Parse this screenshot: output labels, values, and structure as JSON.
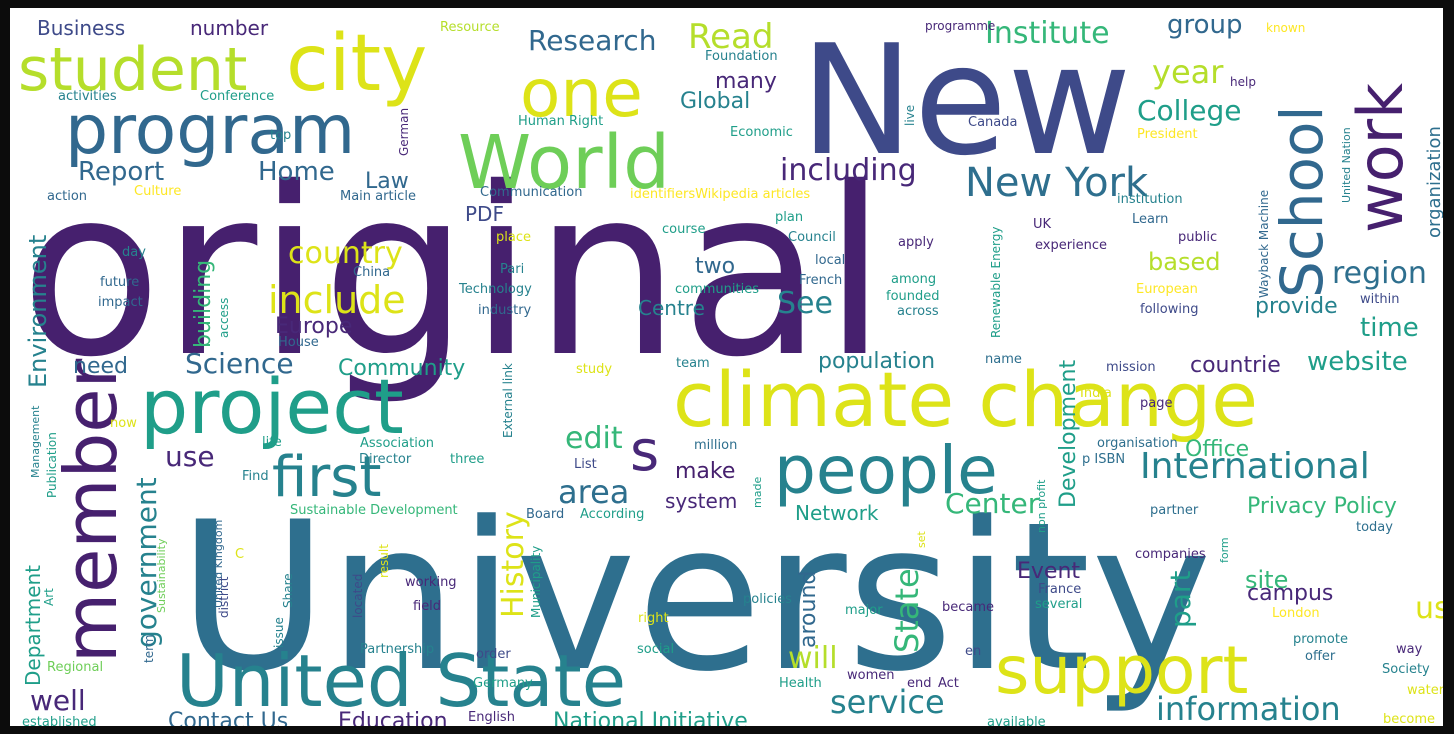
{
  "palette": {
    "dark_purple": "#46206e",
    "purple": "#482878",
    "indigo": "#3e4a89",
    "blue": "#31688e",
    "teal_blue": "#2e6f8e",
    "teal": "#26828e",
    "teal_green": "#1f9e89",
    "green": "#35b779",
    "light_green": "#6ece58",
    "lime": "#b5de2b",
    "yellow": "#dde318",
    "bright_yellow": "#fde725"
  },
  "words": [
    {
      "text": "original",
      "color": "dark_purple"
    },
    {
      "text": "University",
      "color": "teal_blue"
    },
    {
      "text": "New",
      "color": "indigo"
    },
    {
      "text": "climate change",
      "color": "yellow"
    },
    {
      "text": "project",
      "color": "teal_green"
    },
    {
      "text": "World",
      "color": "light_green"
    },
    {
      "text": "city",
      "color": "yellow"
    },
    {
      "text": "United State",
      "color": "teal"
    },
    {
      "text": "member",
      "color": "dark_purple"
    },
    {
      "text": "program",
      "color": "blue"
    },
    {
      "text": "people",
      "color": "teal"
    },
    {
      "text": "support",
      "color": "yellow"
    },
    {
      "text": "one",
      "color": "yellow"
    },
    {
      "text": "School",
      "color": "blue"
    },
    {
      "text": "work",
      "color": "dark_purple"
    },
    {
      "text": "student",
      "color": "lime"
    },
    {
      "text": "first",
      "color": "teal"
    },
    {
      "text": "s",
      "color": "purple"
    },
    {
      "text": "New York",
      "color": "teal_blue"
    },
    {
      "text": "International",
      "color": "teal"
    },
    {
      "text": "including",
      "color": "purple"
    },
    {
      "text": "government",
      "color": "teal"
    },
    {
      "text": "include",
      "color": "yellow"
    },
    {
      "text": "History",
      "color": "yellow"
    },
    {
      "text": "Research",
      "color": "blue"
    },
    {
      "text": "Institute",
      "color": "green"
    },
    {
      "text": "information",
      "color": "teal"
    },
    {
      "text": "service",
      "color": "teal"
    },
    {
      "text": "State",
      "color": "green"
    },
    {
      "text": "country",
      "color": "yellow"
    },
    {
      "text": "region",
      "color": "teal_blue"
    },
    {
      "text": "area",
      "color": "teal_blue"
    },
    {
      "text": "Environment",
      "color": "teal"
    },
    {
      "text": "College",
      "color": "teal_green"
    },
    {
      "text": "Science",
      "color": "blue"
    },
    {
      "text": "edit",
      "color": "green"
    },
    {
      "text": "Read",
      "color": "lime"
    },
    {
      "text": "year",
      "color": "lime"
    },
    {
      "text": "Center",
      "color": "green"
    },
    {
      "text": "Report",
      "color": "blue"
    },
    {
      "text": "Home",
      "color": "blue"
    },
    {
      "text": "use",
      "color": "purple"
    },
    {
      "text": "well",
      "color": "purple"
    },
    {
      "text": "will",
      "color": "lime"
    },
    {
      "text": "website",
      "color": "teal_green"
    },
    {
      "text": "Development",
      "color": "teal_green"
    },
    {
      "text": "part",
      "color": "teal_green"
    },
    {
      "text": "building",
      "color": "green"
    },
    {
      "text": "Privacy Policy",
      "color": "green"
    },
    {
      "text": "See",
      "color": "teal"
    },
    {
      "text": "group",
      "color": "blue"
    },
    {
      "text": "organization",
      "color": "teal_blue"
    },
    {
      "text": "many",
      "color": "purple"
    },
    {
      "text": "Global",
      "color": "teal"
    },
    {
      "text": "time",
      "color": "teal_green"
    },
    {
      "text": "Office",
      "color": "green"
    },
    {
      "text": "around",
      "color": "blue"
    },
    {
      "text": "population",
      "color": "teal"
    },
    {
      "text": "Contact Us",
      "color": "blue"
    },
    {
      "text": "Education",
      "color": "purple"
    },
    {
      "text": "National Initiative",
      "color": "teal_green"
    },
    {
      "text": "Department",
      "color": "teal_green"
    },
    {
      "text": "provide",
      "color": "teal"
    },
    {
      "text": "site",
      "color": "green"
    },
    {
      "text": "us",
      "color": "yellow"
    },
    {
      "text": "based",
      "color": "lime"
    },
    {
      "text": "system",
      "color": "purple"
    },
    {
      "text": "make",
      "color": "dark_purple"
    },
    {
      "text": "two",
      "color": "blue"
    },
    {
      "text": "Centre",
      "color": "teal"
    },
    {
      "text": "Europe",
      "color": "purple"
    },
    {
      "text": "Law",
      "color": "blue"
    },
    {
      "text": "PDF",
      "color": "indigo"
    },
    {
      "text": "Community",
      "color": "teal_green"
    },
    {
      "text": "need",
      "color": "blue"
    },
    {
      "text": "Event",
      "color": "purple"
    },
    {
      "text": "campus",
      "color": "purple"
    },
    {
      "text": "countrie",
      "color": "purple"
    },
    {
      "text": "Network",
      "color": "teal_green"
    },
    {
      "text": "Business",
      "color": "indigo"
    },
    {
      "text": "number",
      "color": "purple"
    },
    {
      "text": "Resource",
      "color": "lime"
    },
    {
      "text": "Foundation",
      "color": "teal"
    },
    {
      "text": "programme",
      "color": "purple"
    },
    {
      "text": "known",
      "color": "bright_yellow"
    },
    {
      "text": "activities",
      "color": "teal"
    },
    {
      "text": "Conference",
      "color": "teal_green"
    },
    {
      "text": "Human Right",
      "color": "teal_green"
    },
    {
      "text": "Economic",
      "color": "teal_green"
    },
    {
      "text": "top",
      "color": "teal"
    },
    {
      "text": "German",
      "color": "purple"
    },
    {
      "text": "live",
      "color": "teal"
    },
    {
      "text": "help",
      "color": "purple"
    },
    {
      "text": "Canada",
      "color": "indigo"
    },
    {
      "text": "President",
      "color": "bright_yellow"
    },
    {
      "text": "United Nation",
      "color": "teal"
    },
    {
      "text": "action",
      "color": "blue"
    },
    {
      "text": "Culture",
      "color": "bright_yellow"
    },
    {
      "text": "Main article",
      "color": "blue"
    },
    {
      "text": "Communication",
      "color": "blue"
    },
    {
      "text": "identifiersWikipedia articles",
      "color": "bright_yellow"
    },
    {
      "text": "institution",
      "color": "teal"
    },
    {
      "text": "Renewable Energy",
      "color": "teal_green"
    },
    {
      "text": "Wayback Machine",
      "color": "blue"
    },
    {
      "text": "day",
      "color": "teal"
    },
    {
      "text": "place",
      "color": "yellow"
    },
    {
      "text": "course",
      "color": "teal_green"
    },
    {
      "text": "plan",
      "color": "teal_green"
    },
    {
      "text": "Council",
      "color": "teal"
    },
    {
      "text": "apply",
      "color": "purple"
    },
    {
      "text": "UK",
      "color": "purple"
    },
    {
      "text": "Learn",
      "color": "blue"
    },
    {
      "text": "public",
      "color": "purple"
    },
    {
      "text": "experience",
      "color": "purple"
    },
    {
      "text": "China",
      "color": "blue"
    },
    {
      "text": "Pari",
      "color": "teal"
    },
    {
      "text": "local",
      "color": "blue"
    },
    {
      "text": "French",
      "color": "blue"
    },
    {
      "text": "future",
      "color": "blue"
    },
    {
      "text": "impact",
      "color": "blue"
    },
    {
      "text": "access",
      "color": "teal_green"
    },
    {
      "text": "Technology",
      "color": "teal"
    },
    {
      "text": "communities",
      "color": "teal_green"
    },
    {
      "text": "among",
      "color": "teal_green"
    },
    {
      "text": "European",
      "color": "bright_yellow"
    },
    {
      "text": "within",
      "color": "indigo"
    },
    {
      "text": "industry",
      "color": "blue"
    },
    {
      "text": "founded",
      "color": "teal_green"
    },
    {
      "text": "across",
      "color": "teal"
    },
    {
      "text": "following",
      "color": "indigo"
    },
    {
      "text": "House",
      "color": "blue"
    },
    {
      "text": "External link",
      "color": "teal"
    },
    {
      "text": "team",
      "color": "teal"
    },
    {
      "text": "name",
      "color": "teal_blue"
    },
    {
      "text": "mission",
      "color": "indigo"
    },
    {
      "text": "study",
      "color": "yellow"
    },
    {
      "text": "India",
      "color": "yellow"
    },
    {
      "text": "Management",
      "color": "teal"
    },
    {
      "text": "now",
      "color": "yellow"
    },
    {
      "text": "page",
      "color": "purple"
    },
    {
      "text": "Publication",
      "color": "teal_green"
    },
    {
      "text": "life",
      "color": "teal_green"
    },
    {
      "text": "Association",
      "color": "teal_green"
    },
    {
      "text": "three",
      "color": "teal_green"
    },
    {
      "text": "million",
      "color": "teal_blue"
    },
    {
      "text": "organisation",
      "color": "teal_blue"
    },
    {
      "text": "Director",
      "color": "teal"
    },
    {
      "text": "List",
      "color": "indigo"
    },
    {
      "text": "p ISBN",
      "color": "teal_blue"
    },
    {
      "text": "Find",
      "color": "teal"
    },
    {
      "text": "made",
      "color": "teal_green"
    },
    {
      "text": "non profit",
      "color": "teal_green"
    },
    {
      "text": "United Kingdom",
      "color": "blue"
    },
    {
      "text": "Sustainable Development",
      "color": "green"
    },
    {
      "text": "Board",
      "color": "blue"
    },
    {
      "text": "According",
      "color": "teal_green"
    },
    {
      "text": "partner",
      "color": "teal_blue"
    },
    {
      "text": "district",
      "color": "indigo"
    },
    {
      "text": "Sustainability",
      "color": "light_green"
    },
    {
      "text": "result",
      "color": "yellow"
    },
    {
      "text": "set",
      "color": "yellow"
    },
    {
      "text": "form",
      "color": "teal_green"
    },
    {
      "text": "today",
      "color": "teal_blue"
    },
    {
      "text": "Art",
      "color": "teal_green"
    },
    {
      "text": "C",
      "color": "yellow"
    },
    {
      "text": "Share",
      "color": "teal"
    },
    {
      "text": "Municipality",
      "color": "teal_green"
    },
    {
      "text": "companies",
      "color": "purple"
    },
    {
      "text": "working",
      "color": "purple"
    },
    {
      "text": "located",
      "color": "indigo"
    },
    {
      "text": "France",
      "color": "indigo"
    },
    {
      "text": "several",
      "color": "teal_green"
    },
    {
      "text": "issue",
      "color": "teal"
    },
    {
      "text": "field",
      "color": "purple"
    },
    {
      "text": "right",
      "color": "yellow"
    },
    {
      "text": "policies",
      "color": "teal"
    },
    {
      "text": "major",
      "color": "teal_green"
    },
    {
      "text": "became",
      "color": "purple"
    },
    {
      "text": "London",
      "color": "bright_yellow"
    },
    {
      "text": "term",
      "color": "blue"
    },
    {
      "text": "Partnership",
      "color": "teal"
    },
    {
      "text": "order",
      "color": "indigo"
    },
    {
      "text": "social",
      "color": "teal_green"
    },
    {
      "text": "en",
      "color": "indigo"
    },
    {
      "text": "promote",
      "color": "teal"
    },
    {
      "text": "way",
      "color": "purple"
    },
    {
      "text": "Regional",
      "color": "light_green"
    },
    {
      "text": "offer",
      "color": "teal_blue"
    },
    {
      "text": "Society",
      "color": "teal"
    },
    {
      "text": "Germany",
      "color": "teal_green"
    },
    {
      "text": "Health",
      "color": "teal_green"
    },
    {
      "text": "women",
      "color": "purple"
    },
    {
      "text": "end",
      "color": "purple"
    },
    {
      "text": "Act",
      "color": "purple"
    },
    {
      "text": "water",
      "color": "yellow"
    },
    {
      "text": "established",
      "color": "teal_green"
    },
    {
      "text": "English",
      "color": "purple"
    },
    {
      "text": "available",
      "color": "teal_green"
    },
    {
      "text": "become",
      "color": "yellow"
    }
  ]
}
